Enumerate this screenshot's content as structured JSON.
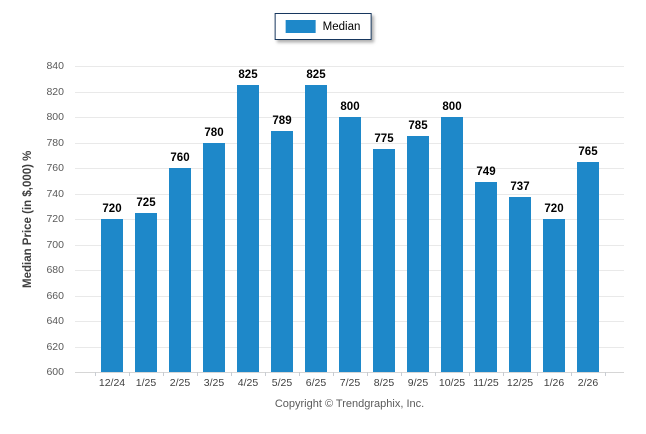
{
  "legend": {
    "label": "Median"
  },
  "footer": {
    "copyright": "Copyright © Trendgraphix, Inc."
  },
  "colors": {
    "bar": "#1E88C9",
    "legend_border": "#17375E",
    "gridline": "#E9E9E9",
    "axis_line": "#D6D6D6",
    "value_label": "#000000",
    "y_tick_label": "#595959",
    "x_tick_label": "#3F3F3F",
    "y_title": "#3F3F3F",
    "copyright": "#5A5A5A"
  },
  "chart_data": {
    "type": "bar",
    "title": "",
    "xlabel": "",
    "ylabel": "Median Price (in $,000) %",
    "categories": [
      "12/24",
      "1/25",
      "2/25",
      "3/25",
      "4/25",
      "5/25",
      "6/25",
      "7/25",
      "8/25",
      "9/25",
      "10/25",
      "11/25",
      "12/25",
      "1/26",
      "2/26"
    ],
    "series": [
      {
        "name": "Median",
        "values": [
          720,
          725,
          760,
          780,
          825,
          789,
          825,
          800,
          775,
          785,
          800,
          749,
          737,
          720,
          765
        ]
      }
    ],
    "ylim": [
      600,
      840
    ],
    "ytick_step": 20,
    "grid": "horizontal",
    "legend_position": "top-center",
    "value_labels": true
  }
}
